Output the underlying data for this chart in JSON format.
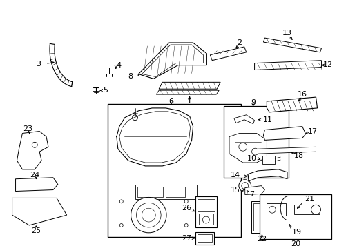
{
  "bg_color": "#ffffff",
  "figsize": [
    4.89,
    3.6
  ],
  "dpi": 100
}
